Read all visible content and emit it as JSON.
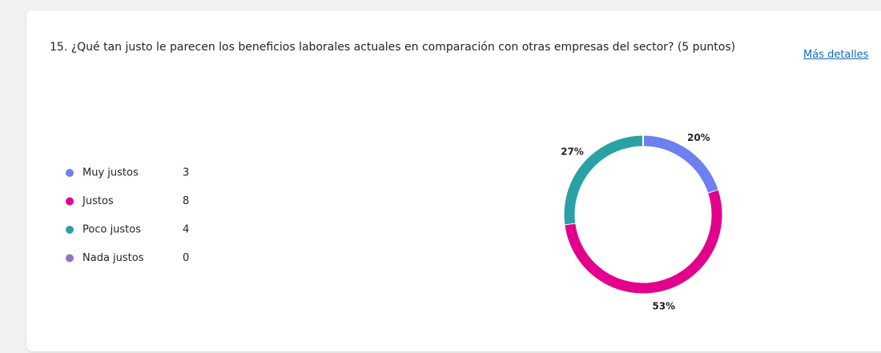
{
  "chart_data": {
    "type": "donut",
    "title": "15. ¿Qué tan justo le parecen los beneficios laborales actuales en comparación con otras empresas del sector?  (5 puntos)",
    "categories": [
      "Muy justos",
      "Justos",
      "Poco justos",
      "Nada justos"
    ],
    "counts": [
      3,
      8,
      4,
      0
    ],
    "values": [
      20,
      53,
      27,
      0
    ],
    "value_labels": [
      "20%",
      "53%",
      "27%",
      null
    ],
    "colors": [
      "#6e80f0",
      "#e3008c",
      "#2aa1a5",
      "#9370cc"
    ]
  },
  "link": "Más detalles"
}
